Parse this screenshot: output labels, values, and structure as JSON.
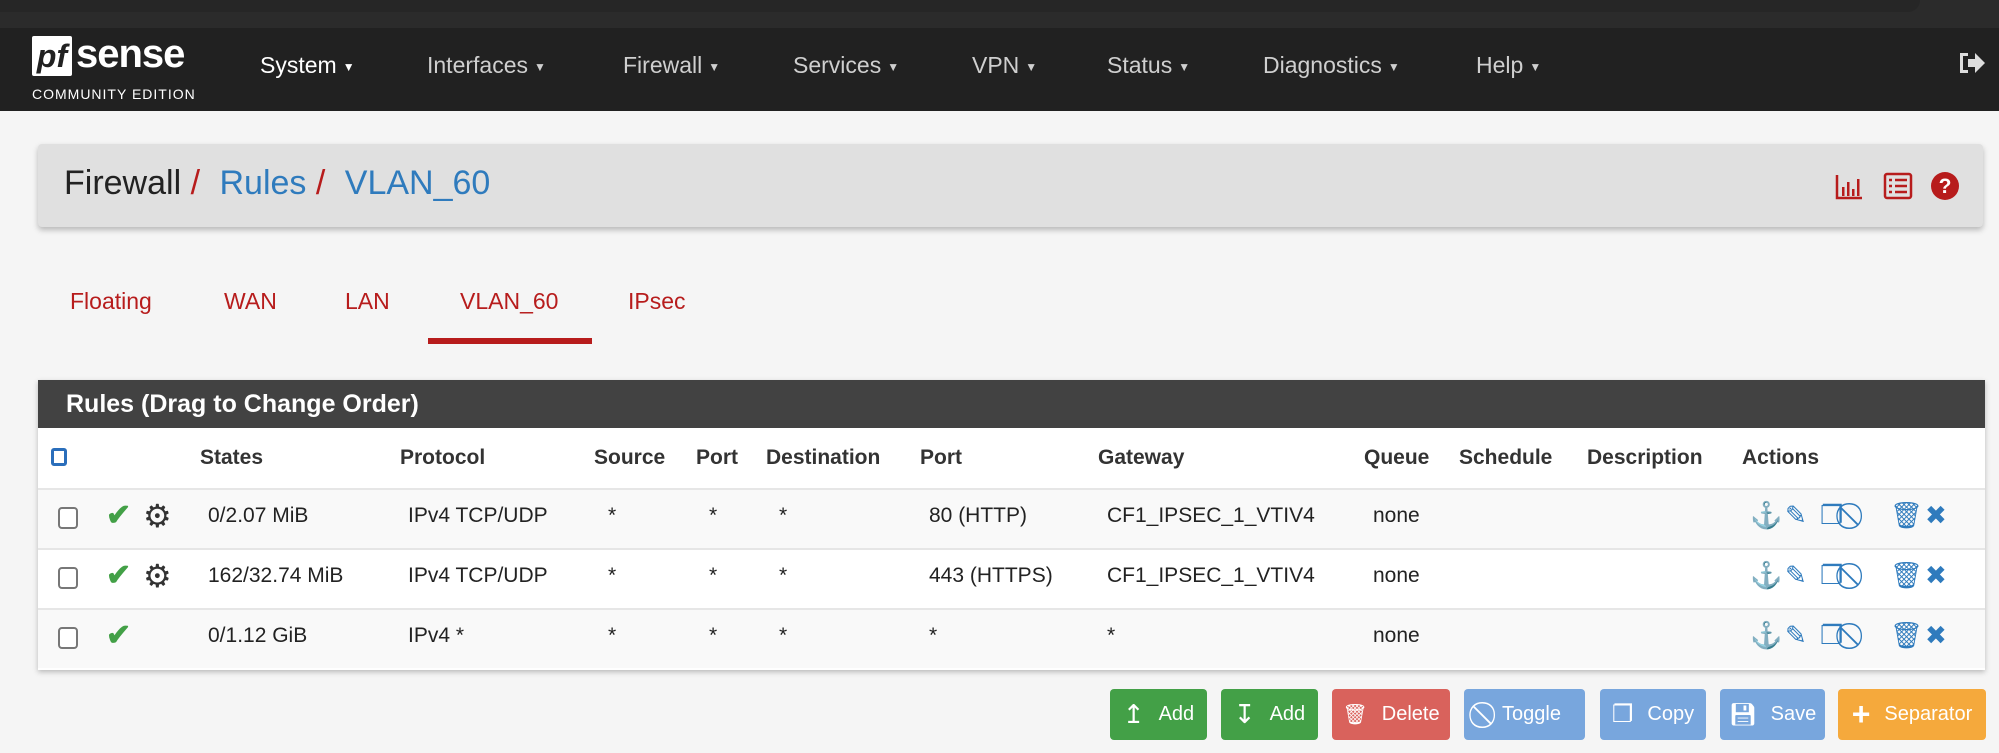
{
  "logo": {
    "mark": "pf",
    "word": "sense",
    "edition": "COMMUNITY EDITION"
  },
  "nav": {
    "items": [
      "System",
      "Interfaces",
      "Firewall",
      "Services",
      "VPN",
      "Status",
      "Diagnostics",
      "Help"
    ],
    "logout_icon": "sign-out-icon"
  },
  "breadcrumb": {
    "a": "Firewall",
    "b": "Rules",
    "c": "VLAN_60",
    "sep": "/"
  },
  "header_icons": [
    "bar-chart-icon",
    "list-icon",
    "help-icon"
  ],
  "tabs": [
    "Floating",
    "WAN",
    "LAN",
    "VLAN_60",
    "IPsec"
  ],
  "active_tab": "VLAN_60",
  "panel": {
    "title": "Rules (Drag to Change Order)"
  },
  "columns": [
    "States",
    "Protocol",
    "Source",
    "Port",
    "Destination",
    "Port",
    "Gateway",
    "Queue",
    "Schedule",
    "Description",
    "Actions"
  ],
  "rows": [
    {
      "states": "0/2.07 MiB",
      "protocol": "IPv4 TCP/UDP",
      "source": "*",
      "sport": "*",
      "dest": "*",
      "dport": "80 (HTTP)",
      "gateway": "CF1_IPSEC_1_VTIV4",
      "queue": "none",
      "schedule": "",
      "description": "",
      "advanced": true
    },
    {
      "states": "162/32.74 MiB",
      "protocol": "IPv4 TCP/UDP",
      "source": "*",
      "sport": "*",
      "dest": "*",
      "dport": "443 (HTTPS)",
      "gateway": "CF1_IPSEC_1_VTIV4",
      "queue": "none",
      "schedule": "",
      "description": "",
      "advanced": true
    },
    {
      "states": "0/1.12 GiB",
      "protocol": "IPv4 *",
      "source": "*",
      "sport": "*",
      "dest": "*",
      "dport": "*",
      "gateway": "*",
      "queue": "none",
      "schedule": "",
      "description": "",
      "advanced": false
    }
  ],
  "buttons": {
    "add_top": "Add",
    "add_bottom": "Add",
    "delete": "Delete",
    "toggle": "Toggle",
    "copy": "Copy",
    "save": "Save",
    "separator": "Separator"
  },
  "colors": {
    "brand_red": "#b71c1c",
    "link_blue": "#2f7bbd",
    "pass_green": "#43a047",
    "nav_bg": "#212121"
  }
}
